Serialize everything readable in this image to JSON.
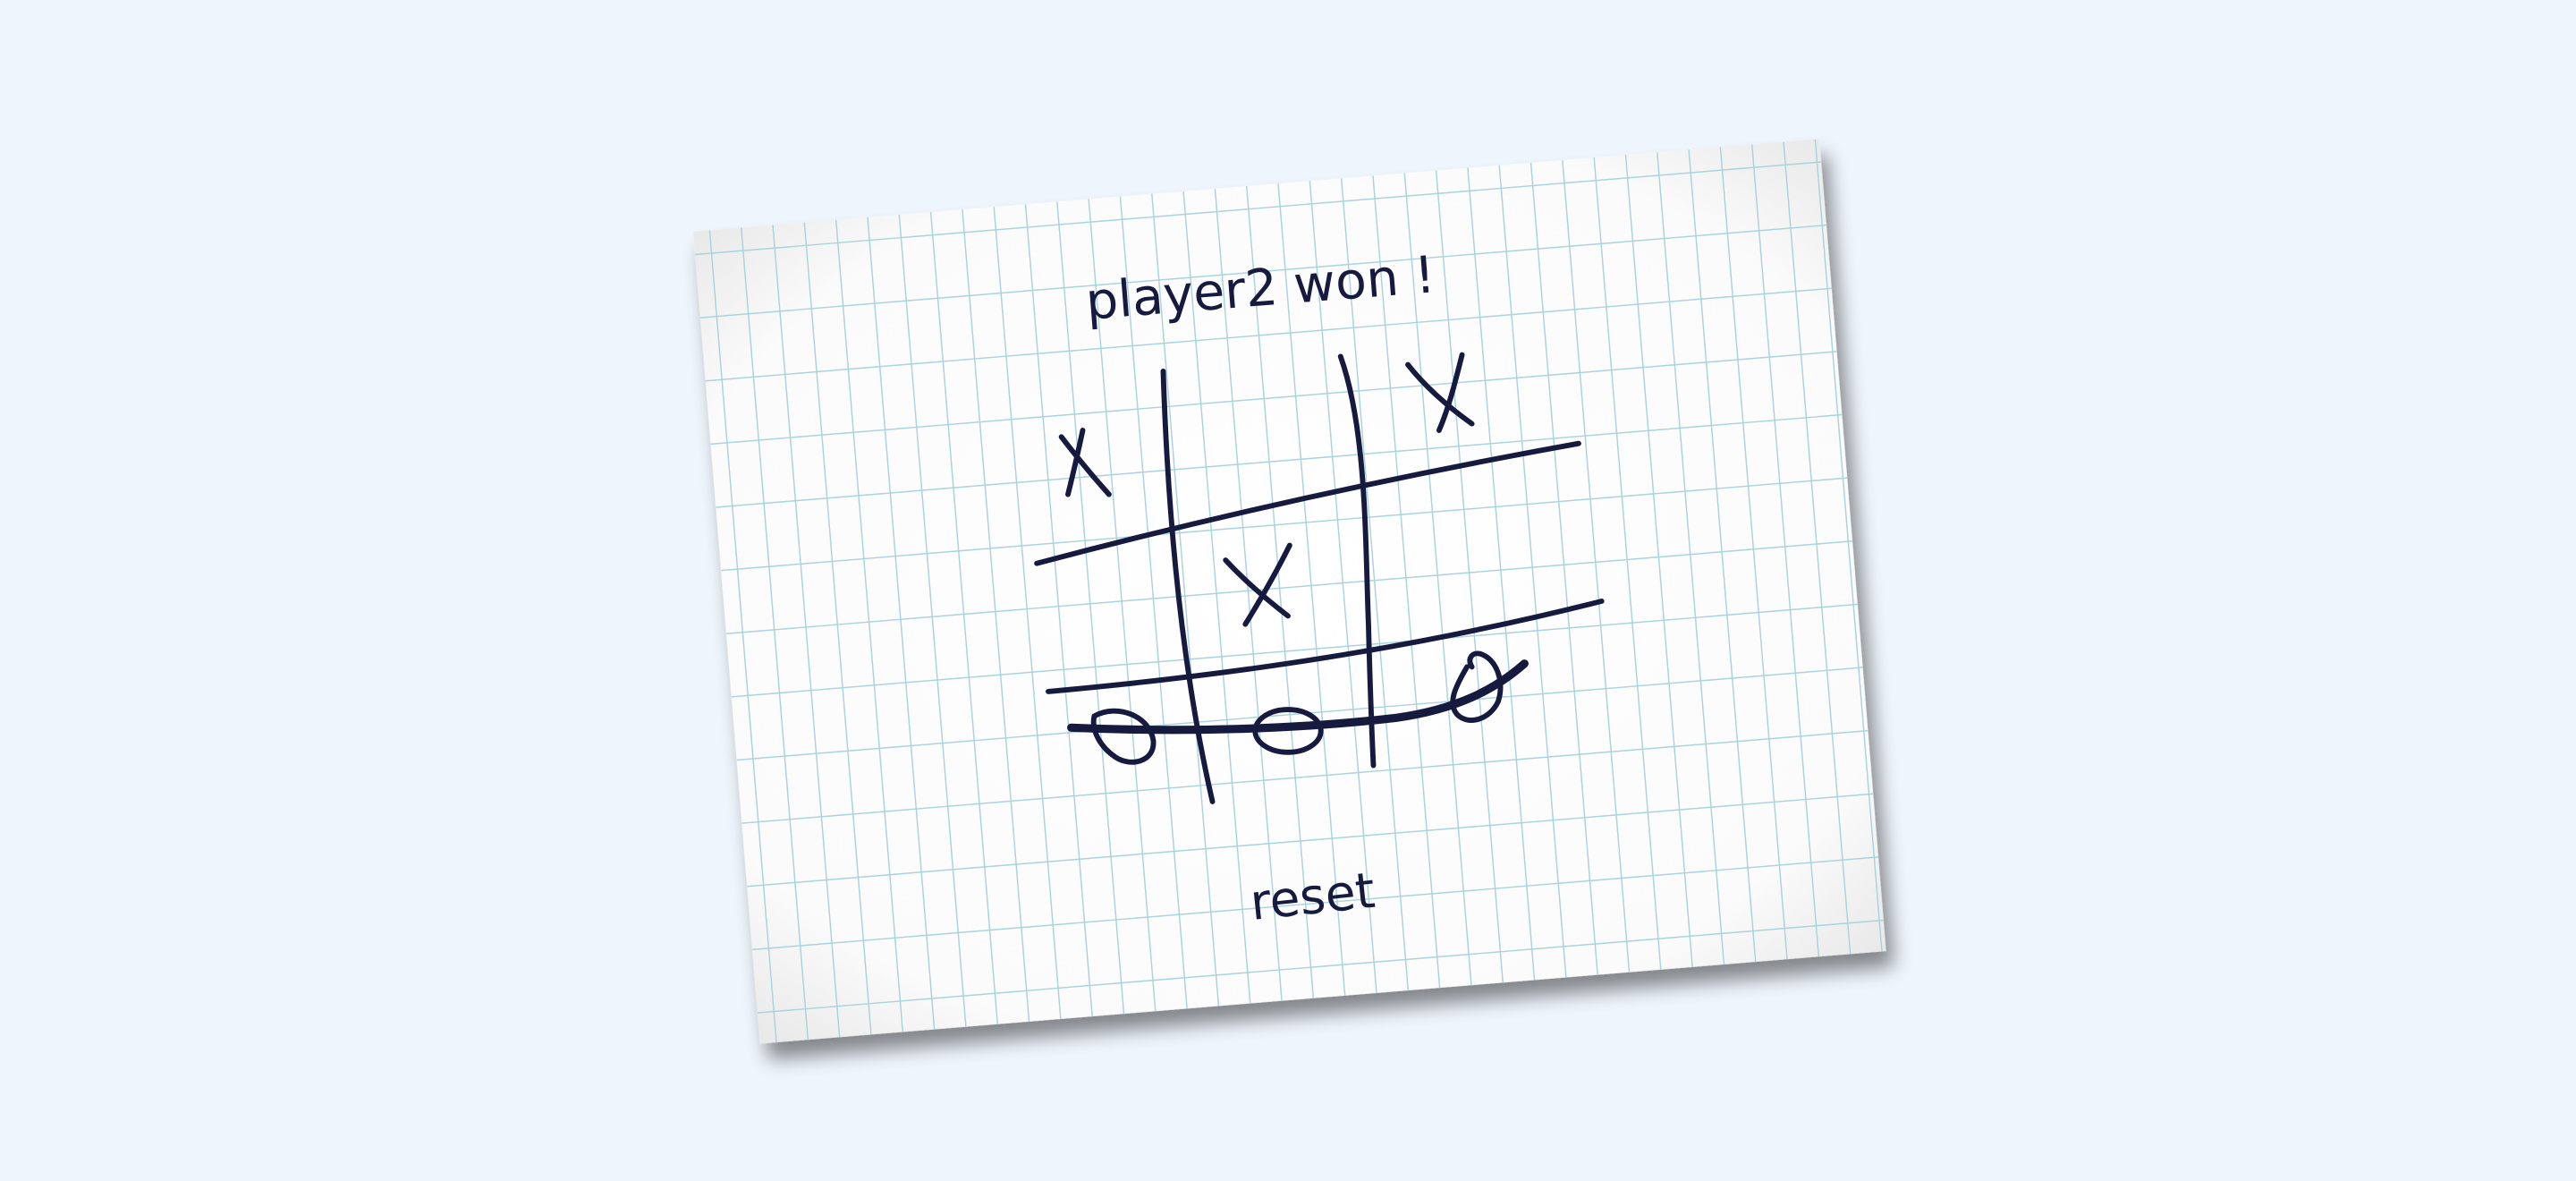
{
  "app": {
    "background_color": "#eef5fc",
    "paper_color": "#fdfdfd",
    "grid_color": "#a9d3df",
    "ink_color": "#161a3e"
  },
  "status": {
    "message": "player2 won !"
  },
  "board": {
    "cells": [
      [
        "X",
        "",
        "X"
      ],
      [
        "",
        "X",
        ""
      ],
      [
        "O",
        "O",
        "O"
      ]
    ],
    "winner": "O",
    "winning_line": "bottom-row"
  },
  "controls": {
    "reset_label": "reset"
  }
}
